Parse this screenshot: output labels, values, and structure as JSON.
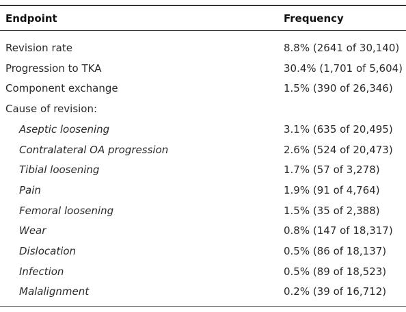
{
  "header": [
    "Endpoint",
    "Frequency"
  ],
  "rows": [
    [
      "Revision rate",
      "8.8% (2641 of 30,140)"
    ],
    [
      "Progression to TKA",
      "30.4% (1,701 of 5,604)"
    ],
    [
      "Component exchange",
      "1.5% (390 of 26,346)"
    ]
  ],
  "cause_of_revision": {
    "label": "Cause of revision:",
    "rows": [
      [
        "Aseptic loosening",
        "3.1% (635 of 20,495)"
      ],
      [
        "Contralateral OA progression",
        "2.6% (524 of 20,473)"
      ],
      [
        "Tibial loosening",
        "1.7% (57 of 3,278)"
      ],
      [
        "Pain",
        "1.9% (91 of 4,764)"
      ],
      [
        "Femoral loosening",
        "1.5% (35 of 2,388)"
      ],
      [
        "Wear",
        "0.8% (147 of 18,317)"
      ],
      [
        "Dislocation",
        "0.5% (86 of 18,137)"
      ],
      [
        "Infection",
        "0.5% (89 of 18,523)"
      ],
      [
        "Malalignment",
        "0.2% (39 of 16,712)"
      ]
    ]
  }
}
